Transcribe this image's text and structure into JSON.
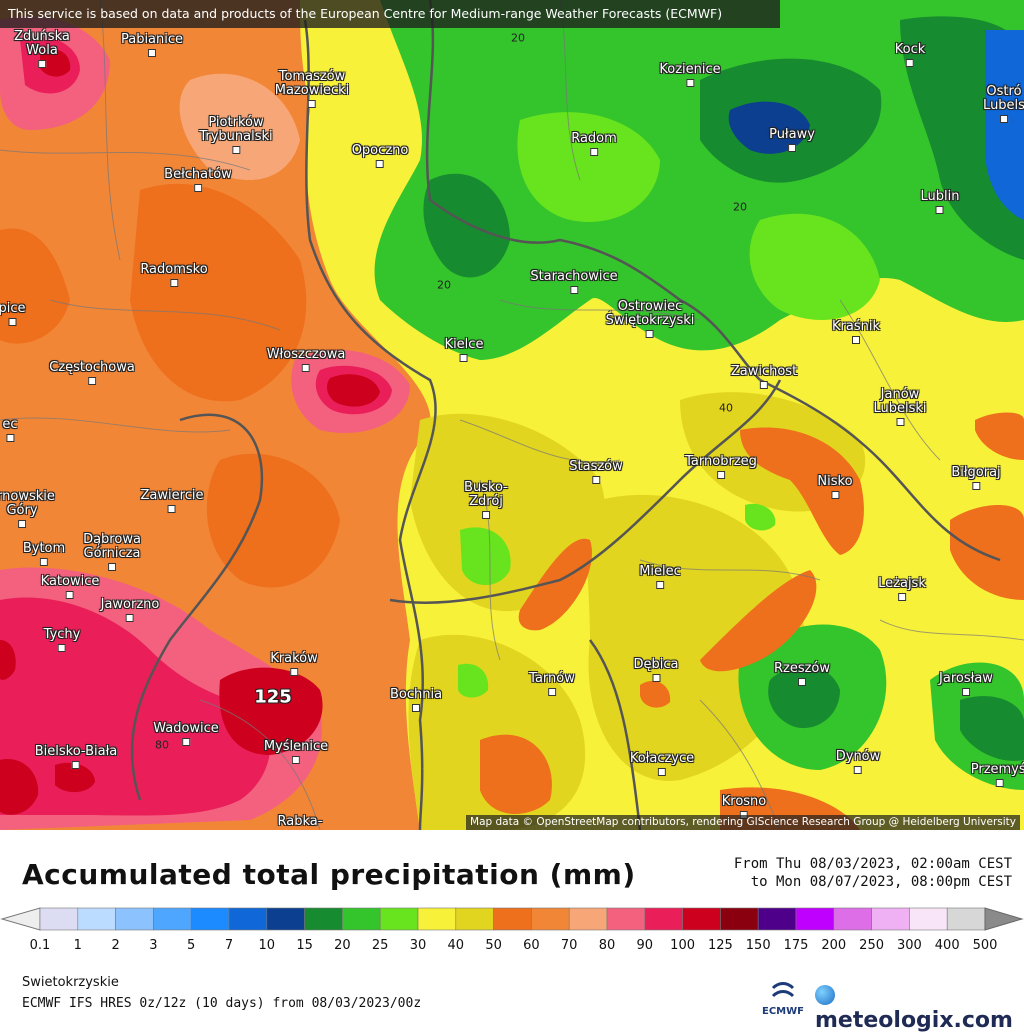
{
  "banner": "This service is based on data and products of the European Centre for Medium-range Weather Forecasts (ECMWF)",
  "attribution": "Map data © OpenStreetMap contributors, rendering GIScience Research Group @ Heidelberg University",
  "title": "Accumulated total precipitation (mm)",
  "date_from": "From Thu 08/03/2023, 02:00am CEST",
  "date_to": "to Mon 08/07/2023, 08:00pm CEST",
  "region": "Swietokrzyskie",
  "model": "ECMWF IFS HRES 0z/12z (10 days) from 08/03/2023/00z",
  "ecmwf_logo": "ECMWF",
  "brand": "meteologix.com",
  "colors": {
    "low": "#f4a15a",
    "dark_orange": "#ee6f1c",
    "salmon": "#f7a777",
    "yellow": "#f8f13a",
    "olive_yellow": "#e2d51f",
    "light_green": "#67e41d",
    "green": "#2fc43a",
    "dark_green": "#178b2f",
    "navy": "#0c3f8f",
    "pink": "#f3617f",
    "crimson": "#ea1f5a",
    "dark_red": "#b3001b"
  },
  "legend": {
    "labels": [
      "0.1",
      "1",
      "2",
      "3",
      "5",
      "7",
      "10",
      "15",
      "20",
      "25",
      "30",
      "40",
      "50",
      "60",
      "70",
      "80",
      "90",
      "100",
      "125",
      "150",
      "175",
      "200",
      "250",
      "300",
      "400",
      "500"
    ],
    "colors": [
      "#dcdcf2",
      "#bcdcff",
      "#8cc3ff",
      "#4ea6ff",
      "#1b8bff",
      "#0f67d8",
      "#0c3f8f",
      "#178b2f",
      "#34c42c",
      "#67e41d",
      "#f8f13a",
      "#e2d51f",
      "#ee6f1c",
      "#f28637",
      "#f7a777",
      "#f3617f",
      "#ea1f5a",
      "#cd001e",
      "#8b000f",
      "#4e008a",
      "#c000ff",
      "#dd6ee8",
      "#efb1f3",
      "#f8e6f8",
      "#d7d7d7"
    ]
  },
  "cities": [
    {
      "name": "Zduńska\nWola"
    },
    {
      "name": "Pabianice"
    },
    {
      "name": "Tomaszów\nMazowiecki"
    },
    {
      "name": "Piotrków\nTrybunalski"
    },
    {
      "name": "Opoczno"
    },
    {
      "name": "Bełchatów"
    },
    {
      "name": "Radom"
    },
    {
      "name": "Kozienice"
    },
    {
      "name": "Kock"
    },
    {
      "name": "Puławy"
    },
    {
      "name": "Lublin"
    },
    {
      "name": "Ostró\nLubels"
    },
    {
      "name": "Radomsko"
    },
    {
      "name": "Starachowice"
    },
    {
      "name": "Ostrowiec\nŚwiętokrzyski"
    },
    {
      "name": "Kraśnik"
    },
    {
      "name": "Włoszczowa"
    },
    {
      "name": "Kielce"
    },
    {
      "name": "Częstochowa"
    },
    {
      "name": "Zawichost"
    },
    {
      "name": "Janów\nLubelski"
    },
    {
      "name": "Staszów"
    },
    {
      "name": "Tarnobrzeg"
    },
    {
      "name": "Nisko"
    },
    {
      "name": "Biłgoraj"
    },
    {
      "name": "Busko-\nZdrój"
    },
    {
      "name": "Zawiercie"
    },
    {
      "name": "arnowskie\nGóry"
    },
    {
      "name": "Bytom"
    },
    {
      "name": "Dąbrowa\nGórnicza"
    },
    {
      "name": "Katowice"
    },
    {
      "name": "Mielec"
    },
    {
      "name": "Leżajsk"
    },
    {
      "name": "Jaworzno"
    },
    {
      "name": "Tychy"
    },
    {
      "name": "Kraków"
    },
    {
      "name": "Dębica"
    },
    {
      "name": "Rzeszów"
    },
    {
      "name": "Tarnów"
    },
    {
      "name": "Bochnia"
    },
    {
      "name": "Jarosław"
    },
    {
      "name": "Wadowice"
    },
    {
      "name": "Myślenice"
    },
    {
      "name": "Bielsko-Biała"
    },
    {
      "name": "Kołaczyce"
    },
    {
      "name": "Dynów"
    },
    {
      "name": "Przemyśl"
    },
    {
      "name": "Krosno"
    },
    {
      "name": "Rabka-"
    },
    {
      "name": "pice"
    },
    {
      "name": "ec"
    }
  ],
  "contour_labels": [
    {
      "text": "20"
    },
    {
      "text": "20"
    },
    {
      "text": "20"
    },
    {
      "text": "40"
    },
    {
      "text": "80"
    }
  ],
  "max_value": "125"
}
